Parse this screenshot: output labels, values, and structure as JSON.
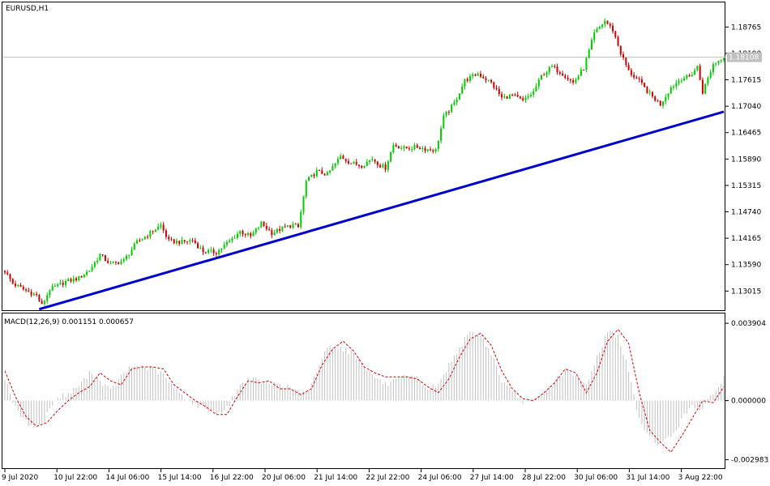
{
  "chart_data": [
    {
      "type": "candlestick",
      "title": "EURUSD,H1",
      "symbol": "EURUSD",
      "timeframe": "H1",
      "ylim": [
        1.1258,
        1.193
      ],
      "y_ticks": [
        "1.18765",
        "1.18190",
        "1.17615",
        "1.17040",
        "1.16465",
        "1.15890",
        "1.15315",
        "1.14740",
        "1.14165",
        "1.13590",
        "1.13015"
      ],
      "y_tick_values": [
        1.18765,
        1.1819,
        1.17615,
        1.1704,
        1.16465,
        1.1589,
        1.15315,
        1.1474,
        1.14165,
        1.1359,
        1.13015
      ],
      "current_price": 1.18108,
      "current_price_label": "1.18108",
      "x_ticks": [
        "9 Jul 2020",
        "10 Jul 22:00",
        "14 Jul 06:00",
        "15 Jul 14:00",
        "16 Jul 22:00",
        "20 Jul 06:00",
        "21 Jul 14:00",
        "22 Jul 22:00",
        "24 Jul 06:00",
        "27 Jul 14:00",
        "28 Jul 22:00",
        "30 Jul 06:00",
        "31 Jul 14:00",
        "3 Aug 22:00"
      ],
      "close_path": [
        [
          0,
          1.1345
        ],
        [
          3,
          1.1318
        ],
        [
          7,
          1.1305
        ],
        [
          12,
          1.1292
        ],
        [
          14,
          1.127
        ],
        [
          17,
          1.1305
        ],
        [
          23,
          1.1322
        ],
        [
          28,
          1.133
        ],
        [
          32,
          1.1347
        ],
        [
          36,
          1.138
        ],
        [
          40,
          1.136
        ],
        [
          45,
          1.1368
        ],
        [
          50,
          1.1408
        ],
        [
          55,
          1.1428
        ],
        [
          59,
          1.1445
        ],
        [
          62,
          1.141
        ],
        [
          67,
          1.1408
        ],
        [
          71,
          1.1412
        ],
        [
          75,
          1.1388
        ],
        [
          80,
          1.1386
        ],
        [
          85,
          1.141
        ],
        [
          89,
          1.1432
        ],
        [
          93,
          1.142
        ],
        [
          97,
          1.1449
        ],
        [
          101,
          1.1428
        ],
        [
          105,
          1.1438
        ],
        [
          109,
          1.1446
        ],
        [
          111,
          1.144
        ],
        [
          114,
          1.154
        ],
        [
          118,
          1.1562
        ],
        [
          122,
          1.1555
        ],
        [
          127,
          1.1595
        ],
        [
          131,
          1.158
        ],
        [
          135,
          1.1575
        ],
        [
          139,
          1.159
        ],
        [
          142,
          1.1575
        ],
        [
          144,
          1.157
        ],
        [
          147,
          1.162
        ],
        [
          151,
          1.1612
        ],
        [
          156,
          1.1615
        ],
        [
          160,
          1.161
        ],
        [
          163,
          1.1608
        ],
        [
          166,
          1.168
        ],
        [
          170,
          1.171
        ],
        [
          174,
          1.176
        ],
        [
          179,
          1.1775
        ],
        [
          184,
          1.1755
        ],
        [
          188,
          1.1722
        ],
        [
          192,
          1.1728
        ],
        [
          196,
          1.1715
        ],
        [
          200,
          1.1735
        ],
        [
          203,
          1.177
        ],
        [
          207,
          1.179
        ],
        [
          211,
          1.1775
        ],
        [
          215,
          1.1755
        ],
        [
          219,
          1.1787
        ],
        [
          223,
          1.1862
        ],
        [
          227,
          1.189
        ],
        [
          230,
          1.187
        ],
        [
          233,
          1.182
        ],
        [
          236,
          1.178
        ],
        [
          240,
          1.1758
        ],
        [
          244,
          1.173
        ],
        [
          248,
          1.1708
        ],
        [
          252,
          1.1745
        ],
        [
          256,
          1.1765
        ],
        [
          259,
          1.1768
        ],
        [
          262,
          1.179
        ],
        [
          264,
          1.1735
        ],
        [
          268,
          1.1795
        ],
        [
          272,
          1.1812
        ]
      ],
      "trendline": {
        "x": [
          13,
          272
        ],
        "y": [
          1.1262,
          1.1692
        ],
        "color": "#0000cc",
        "label": ""
      },
      "bull_color": "#00cc00",
      "bear_color": "#cc0000",
      "grid": false
    },
    {
      "type": "histogram+line",
      "title": "MACD(12,26,9) 0.001151 0.000657",
      "params": "12,26,9",
      "main_value": "0.001151",
      "signal_value": "0.000657",
      "ylim": [
        -0.00345,
        0.0044
      ],
      "y_ticks": [
        "0.003904",
        "0.000000",
        "-0.002983"
      ],
      "y_tick_values": [
        0.003904,
        0.0,
        -0.002983
      ],
      "histogram_color": "#c0c0c0",
      "signal_color": "#dd0000",
      "macd_path": [
        [
          0,
          0.0012
        ],
        [
          4,
          -0.0004
        ],
        [
          8,
          -0.0011
        ],
        [
          12,
          -0.0013
        ],
        [
          15,
          -0.001
        ],
        [
          18,
          -0.0001
        ],
        [
          21,
          0.0002
        ],
        [
          25,
          0.0004
        ],
        [
          29,
          0.0009
        ],
        [
          33,
          0.0015
        ],
        [
          36,
          0.001
        ],
        [
          40,
          0.0005
        ],
        [
          44,
          0.0012
        ],
        [
          48,
          0.0017
        ],
        [
          52,
          0.0017
        ],
        [
          56,
          0.0016
        ],
        [
          60,
          0.0013
        ],
        [
          64,
          0.0006
        ],
        [
          68,
          0.0002
        ],
        [
          72,
          -0.0002
        ],
        [
          76,
          -0.0004
        ],
        [
          80,
          -0.0006
        ],
        [
          84,
          -0.0004
        ],
        [
          88,
          0.0006
        ],
        [
          92,
          0.0011
        ],
        [
          96,
          0.001
        ],
        [
          100,
          0.0008
        ],
        [
          104,
          0.0009
        ],
        [
          108,
          0.0006
        ],
        [
          112,
          0.0004
        ],
        [
          115,
          0.0004
        ],
        [
          118,
          0.0015
        ],
        [
          121,
          0.0025
        ],
        [
          124,
          0.0028
        ],
        [
          128,
          0.0026
        ],
        [
          132,
          0.0024
        ],
        [
          136,
          0.0018
        ],
        [
          140,
          0.0012
        ],
        [
          144,
          0.0008
        ],
        [
          148,
          0.001
        ],
        [
          152,
          0.0012
        ],
        [
          156,
          0.0011
        ],
        [
          160,
          0.0006
        ],
        [
          164,
          0.0008
        ],
        [
          168,
          0.0018
        ],
        [
          172,
          0.0027
        ],
        [
          176,
          0.0034
        ],
        [
          180,
          0.0033
        ],
        [
          184,
          0.0024
        ],
        [
          188,
          0.001
        ],
        [
          192,
          0.0004
        ],
        [
          196,
          0.0
        ],
        [
          200,
          -0.0001
        ],
        [
          204,
          0.0004
        ],
        [
          208,
          0.001
        ],
        [
          212,
          0.0015
        ],
        [
          216,
          0.0012
        ],
        [
          220,
          0.0008
        ],
        [
          224,
          0.0022
        ],
        [
          228,
          0.0035
        ],
        [
          232,
          0.0033
        ],
        [
          236,
          0.0015
        ],
        [
          240,
          -0.001
        ],
        [
          244,
          -0.0018
        ],
        [
          248,
          -0.0022
        ],
        [
          252,
          -0.0018
        ],
        [
          256,
          -0.001
        ],
        [
          260,
          -0.0002
        ],
        [
          264,
          -0.0004
        ],
        [
          268,
          0.0003
        ],
        [
          272,
          0.0012
        ]
      ],
      "signal_path": [
        [
          0,
          0.0015
        ],
        [
          4,
          0.0002
        ],
        [
          8,
          -0.0008
        ],
        [
          12,
          -0.0013
        ],
        [
          16,
          -0.0011
        ],
        [
          20,
          -0.0005
        ],
        [
          24,
          0.0
        ],
        [
          28,
          0.0004
        ],
        [
          32,
          0.0007
        ],
        [
          36,
          0.0014
        ],
        [
          40,
          0.001
        ],
        [
          44,
          0.0008
        ],
        [
          48,
          0.0016
        ],
        [
          52,
          0.0017
        ],
        [
          56,
          0.0017
        ],
        [
          60,
          0.0016
        ],
        [
          64,
          0.0008
        ],
        [
          68,
          0.0004
        ],
        [
          72,
          0.0
        ],
        [
          76,
          -0.0003
        ],
        [
          80,
          -0.0007
        ],
        [
          84,
          -0.0007
        ],
        [
          88,
          0.0002
        ],
        [
          92,
          0.001
        ],
        [
          96,
          0.0009
        ],
        [
          100,
          0.001
        ],
        [
          104,
          0.0006
        ],
        [
          108,
          0.0006
        ],
        [
          112,
          0.0003
        ],
        [
          116,
          0.0006
        ],
        [
          120,
          0.0018
        ],
        [
          124,
          0.0026
        ],
        [
          128,
          0.003
        ],
        [
          132,
          0.0025
        ],
        [
          136,
          0.0017
        ],
        [
          140,
          0.0014
        ],
        [
          144,
          0.0012
        ],
        [
          148,
          0.0012
        ],
        [
          152,
          0.0012
        ],
        [
          156,
          0.0011
        ],
        [
          160,
          0.0007
        ],
        [
          164,
          0.0004
        ],
        [
          168,
          0.0011
        ],
        [
          172,
          0.0022
        ],
        [
          176,
          0.0031
        ],
        [
          180,
          0.0034
        ],
        [
          184,
          0.0028
        ],
        [
          188,
          0.0015
        ],
        [
          192,
          0.0006
        ],
        [
          196,
          0.0001
        ],
        [
          200,
          0.0
        ],
        [
          204,
          0.0004
        ],
        [
          208,
          0.0009
        ],
        [
          212,
          0.0016
        ],
        [
          216,
          0.0014
        ],
        [
          220,
          0.0004
        ],
        [
          224,
          0.0014
        ],
        [
          228,
          0.003
        ],
        [
          232,
          0.0036
        ],
        [
          236,
          0.0029
        ],
        [
          240,
          0.0004
        ],
        [
          244,
          -0.0015
        ],
        [
          248,
          -0.0021
        ],
        [
          252,
          -0.0026
        ],
        [
          256,
          -0.0018
        ],
        [
          260,
          -0.0009
        ],
        [
          264,
          0.0
        ],
        [
          268,
          -0.0001
        ],
        [
          272,
          0.0007
        ]
      ]
    }
  ]
}
